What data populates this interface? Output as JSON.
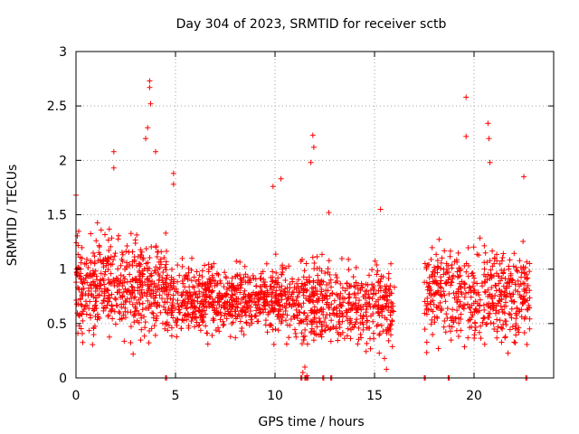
{
  "chart_data": {
    "type": "scatter",
    "title": "Day 304 of 2023, SRMTID for receiver sctb",
    "xlabel": "GPS time / hours",
    "ylabel": "SRMTID / TECUs",
    "xlim": [
      0,
      24
    ],
    "ylim": [
      0,
      3
    ],
    "xticks": [
      0,
      5,
      10,
      15,
      20
    ],
    "xtick_labels": [
      "0",
      "5",
      "10",
      "15",
      "20"
    ],
    "yticks": [
      0,
      0.5,
      1,
      1.5,
      2,
      2.5,
      3
    ],
    "ytick_labels": [
      "0",
      "0.5",
      "1",
      "1.5",
      "2",
      "2.5",
      "3"
    ],
    "grid": true,
    "marker": "+",
    "series": [
      {
        "name": "SRMTID",
        "color": "#ff0000",
        "segments": [
          {
            "x_start": 0.0,
            "x_end": 4.6,
            "mean": 0.85,
            "spread": 0.35,
            "count": 520
          },
          {
            "x_start": 4.6,
            "x_end": 11.3,
            "mean": 0.72,
            "spread": 0.25,
            "count": 700
          },
          {
            "x_start": 11.3,
            "x_end": 16.0,
            "mean": 0.68,
            "spread": 0.3,
            "count": 450
          },
          {
            "x_start": 17.5,
            "x_end": 22.8,
            "mean": 0.75,
            "spread": 0.35,
            "count": 500
          }
        ],
        "highlights": [
          {
            "x": 0.0,
            "y": 1.68
          },
          {
            "x": 1.9,
            "y": 2.08
          },
          {
            "x": 1.9,
            "y": 1.93
          },
          {
            "x": 3.7,
            "y": 2.73
          },
          {
            "x": 3.7,
            "y": 2.67
          },
          {
            "x": 3.6,
            "y": 2.3
          },
          {
            "x": 3.75,
            "y": 2.52
          },
          {
            "x": 3.5,
            "y": 2.2
          },
          {
            "x": 4.0,
            "y": 2.08
          },
          {
            "x": 4.9,
            "y": 1.88
          },
          {
            "x": 4.9,
            "y": 1.78
          },
          {
            "x": 10.3,
            "y": 1.83
          },
          {
            "x": 9.9,
            "y": 1.76
          },
          {
            "x": 11.9,
            "y": 2.23
          },
          {
            "x": 11.95,
            "y": 2.12
          },
          {
            "x": 11.8,
            "y": 1.98
          },
          {
            "x": 12.7,
            "y": 1.52
          },
          {
            "x": 15.3,
            "y": 1.55
          },
          {
            "x": 19.6,
            "y": 2.58
          },
          {
            "x": 19.6,
            "y": 2.22
          },
          {
            "x": 20.7,
            "y": 2.34
          },
          {
            "x": 20.75,
            "y": 2.2
          },
          {
            "x": 20.8,
            "y": 1.98
          },
          {
            "x": 22.5,
            "y": 1.85
          },
          {
            "x": 11.4,
            "y": 0.05
          },
          {
            "x": 11.5,
            "y": 0.1
          },
          {
            "x": 11.6,
            "y": 0.02
          },
          {
            "x": 15.6,
            "y": 0.08
          },
          {
            "x": 15.5,
            "y": 0.18
          }
        ],
        "zeros": [
          4.5,
          11.3,
          11.5,
          11.6,
          12.4,
          12.8,
          17.5,
          18.7,
          22.6
        ]
      }
    ]
  }
}
